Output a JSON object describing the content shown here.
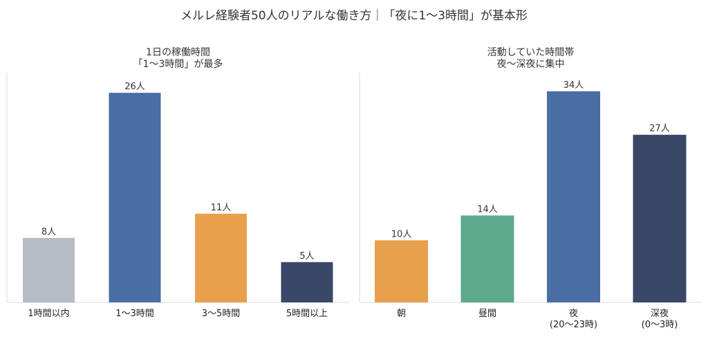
{
  "title": "メルレ経験者50人のリアルな働き方｜「夜に1〜3時間」が基本形",
  "chart_data": [
    {
      "type": "bar",
      "title_lines": [
        "1日の稼働時間",
        "「1〜3時間」が最多"
      ],
      "categories": [
        [
          "1時間以内"
        ],
        [
          "1〜3時間"
        ],
        [
          "3〜5時間"
        ],
        [
          "5時間以上"
        ]
      ],
      "values": [
        8,
        26,
        11,
        5
      ],
      "value_labels": [
        "8人",
        "26人",
        "11人",
        "5人"
      ],
      "colors": [
        "#b5bcc6",
        "#4a6ea3",
        "#e8a04c",
        "#3a4868"
      ],
      "ylim": [
        0,
        28.5
      ],
      "grid": false,
      "legend": "none"
    },
    {
      "type": "bar",
      "title_lines": [
        "活動していた時間帯",
        "夜〜深夜に集中"
      ],
      "categories": [
        [
          "朝"
        ],
        [
          "昼間"
        ],
        [
          "夜",
          "(20〜23時)"
        ],
        [
          "深夜",
          "(0〜3時)"
        ]
      ],
      "values": [
        10,
        14,
        34,
        27
      ],
      "value_labels": [
        "10人",
        "14人",
        "34人",
        "27人"
      ],
      "colors": [
        "#e8a04c",
        "#5caa89",
        "#4a6ea3",
        "#3a4868"
      ],
      "ylim": [
        0,
        37
      ],
      "grid": false,
      "legend": "none"
    }
  ]
}
